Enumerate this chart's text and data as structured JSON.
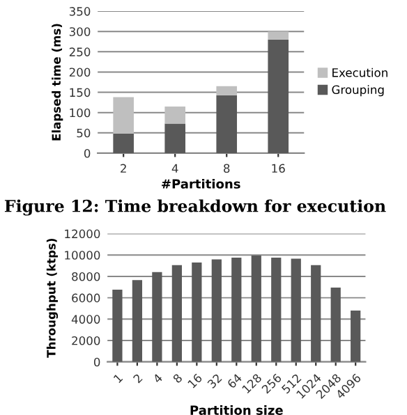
{
  "chart_data": [
    {
      "type": "bar",
      "stacked": true,
      "categories": [
        "2",
        "4",
        "8",
        "16"
      ],
      "xlabel": "#Partitions",
      "ylabel": "Elapsed time (ms)",
      "ylim": [
        0,
        350
      ],
      "yticks": [
        0,
        50,
        100,
        150,
        200,
        250,
        300,
        350
      ],
      "grid": "y",
      "legend": "right",
      "series": [
        {
          "name": "Grouping",
          "color": "#595959",
          "values": [
            48,
            73,
            143,
            280
          ]
        },
        {
          "name": "Execution",
          "color": "#bfbfbf",
          "values": [
            90,
            42,
            22,
            20
          ]
        }
      ],
      "annotations": [
        "Figure 12: Time breakdown for execution"
      ]
    },
    {
      "type": "bar",
      "categories": [
        "1",
        "2",
        "4",
        "8",
        "16",
        "32",
        "64",
        "128",
        "256",
        "512",
        "1024",
        "2048",
        "4096"
      ],
      "xlabel": "Partition size",
      "ylabel": "Throughput (ktps)",
      "ylim": [
        0,
        12000
      ],
      "yticks": [
        0,
        2000,
        4000,
        6000,
        8000,
        10000,
        12000
      ],
      "grid": "y",
      "series": [
        {
          "color": "#595959",
          "values": [
            6750,
            7650,
            8400,
            9050,
            9300,
            9600,
            9750,
            9950,
            9750,
            9650,
            9050,
            6950,
            4800
          ]
        }
      ]
    }
  ]
}
